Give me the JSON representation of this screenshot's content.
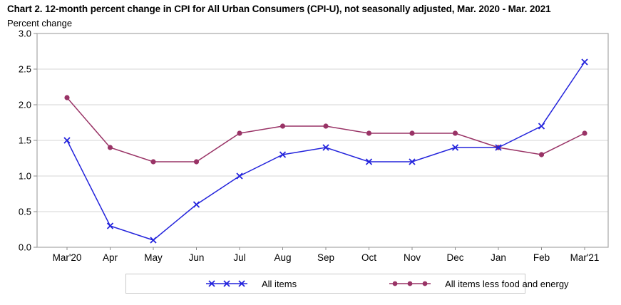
{
  "header": {
    "title": "Chart 2. 12-month percent change in CPI for All Urban Consumers (CPI-U), not seasonally adjusted, Mar. 2020 - Mar. 2021",
    "axis_unit_label": "Percent change"
  },
  "chart_data": {
    "type": "line",
    "title": "Chart 2. 12-month percent change in CPI for All Urban Consumers (CPI-U), not seasonally adjusted, Mar. 2020 - Mar. 2021",
    "xlabel": "",
    "ylabel": "Percent change",
    "ylim": [
      0.0,
      3.0
    ],
    "ytick_step": 0.5,
    "ytick_labels": [
      "0.0",
      "0.5",
      "1.0",
      "1.5",
      "2.0",
      "2.5",
      "3.0"
    ],
    "grid": true,
    "legend_position": "bottom",
    "categories": [
      "Mar'20",
      "Apr",
      "May",
      "Jun",
      "Jul",
      "Aug",
      "Sep",
      "Oct",
      "Nov",
      "Dec",
      "Jan",
      "Feb",
      "Mar'21"
    ],
    "series": [
      {
        "name": "All items",
        "marker": "x",
        "color": "#2323dc",
        "values": [
          1.5,
          0.3,
          0.1,
          0.6,
          1.0,
          1.3,
          1.4,
          1.2,
          1.2,
          1.4,
          1.4,
          1.7,
          2.6
        ]
      },
      {
        "name": "All items less food and energy",
        "marker": "circle",
        "color": "#993366",
        "values": [
          2.1,
          1.4,
          1.2,
          1.2,
          1.6,
          1.7,
          1.7,
          1.6,
          1.6,
          1.6,
          1.4,
          1.3,
          1.6
        ]
      }
    ]
  },
  "colors": {
    "background": "#ffffff",
    "text": "#000000",
    "grid": "#d4d4d4",
    "plot_border": "#a6a6a6",
    "tick": "#8c8c8c",
    "legend_border": "#c9c9c9"
  }
}
